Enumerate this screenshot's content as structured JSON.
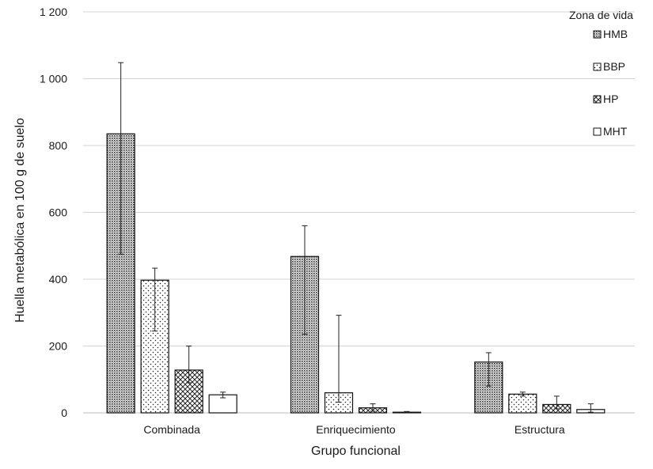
{
  "chart_data": {
    "type": "bar",
    "title": "",
    "xlabel": "Grupo funcional",
    "ylabel": "Huella metabólica en 100 g de suelo",
    "ylim": [
      0,
      1200
    ],
    "y_ticks": [
      0,
      200,
      400,
      600,
      800,
      1000,
      1200
    ],
    "y_tick_labels": [
      "0",
      "200",
      "400",
      "600",
      "800",
      "1 000",
      "1 200"
    ],
    "grid": true,
    "legend": {
      "title": "Zona de vida",
      "position": "top-right"
    },
    "categories": [
      "Combinada",
      "Enriquecimiento",
      "Estructura"
    ],
    "series": [
      {
        "name": "HMB",
        "pattern": "dense-dots",
        "values": [
          835,
          468,
          152
        ],
        "error_low": [
          475,
          235,
          80
        ],
        "error_high": [
          1048,
          560,
          180
        ]
      },
      {
        "name": "BBP",
        "pattern": "sparse-dots",
        "values": [
          397,
          60,
          56
        ],
        "error_low": [
          245,
          32,
          50
        ],
        "error_high": [
          433,
          292,
          62
        ]
      },
      {
        "name": "HP",
        "pattern": "crosshatch",
        "values": [
          128,
          15,
          25
        ],
        "error_low": [
          90,
          5,
          12
        ],
        "error_high": [
          200,
          27,
          50
        ]
      },
      {
        "name": "MHT",
        "pattern": "none",
        "values": [
          54,
          2,
          10
        ],
        "error_low": [
          45,
          1,
          2
        ],
        "error_high": [
          62,
          4,
          27
        ]
      }
    ]
  }
}
